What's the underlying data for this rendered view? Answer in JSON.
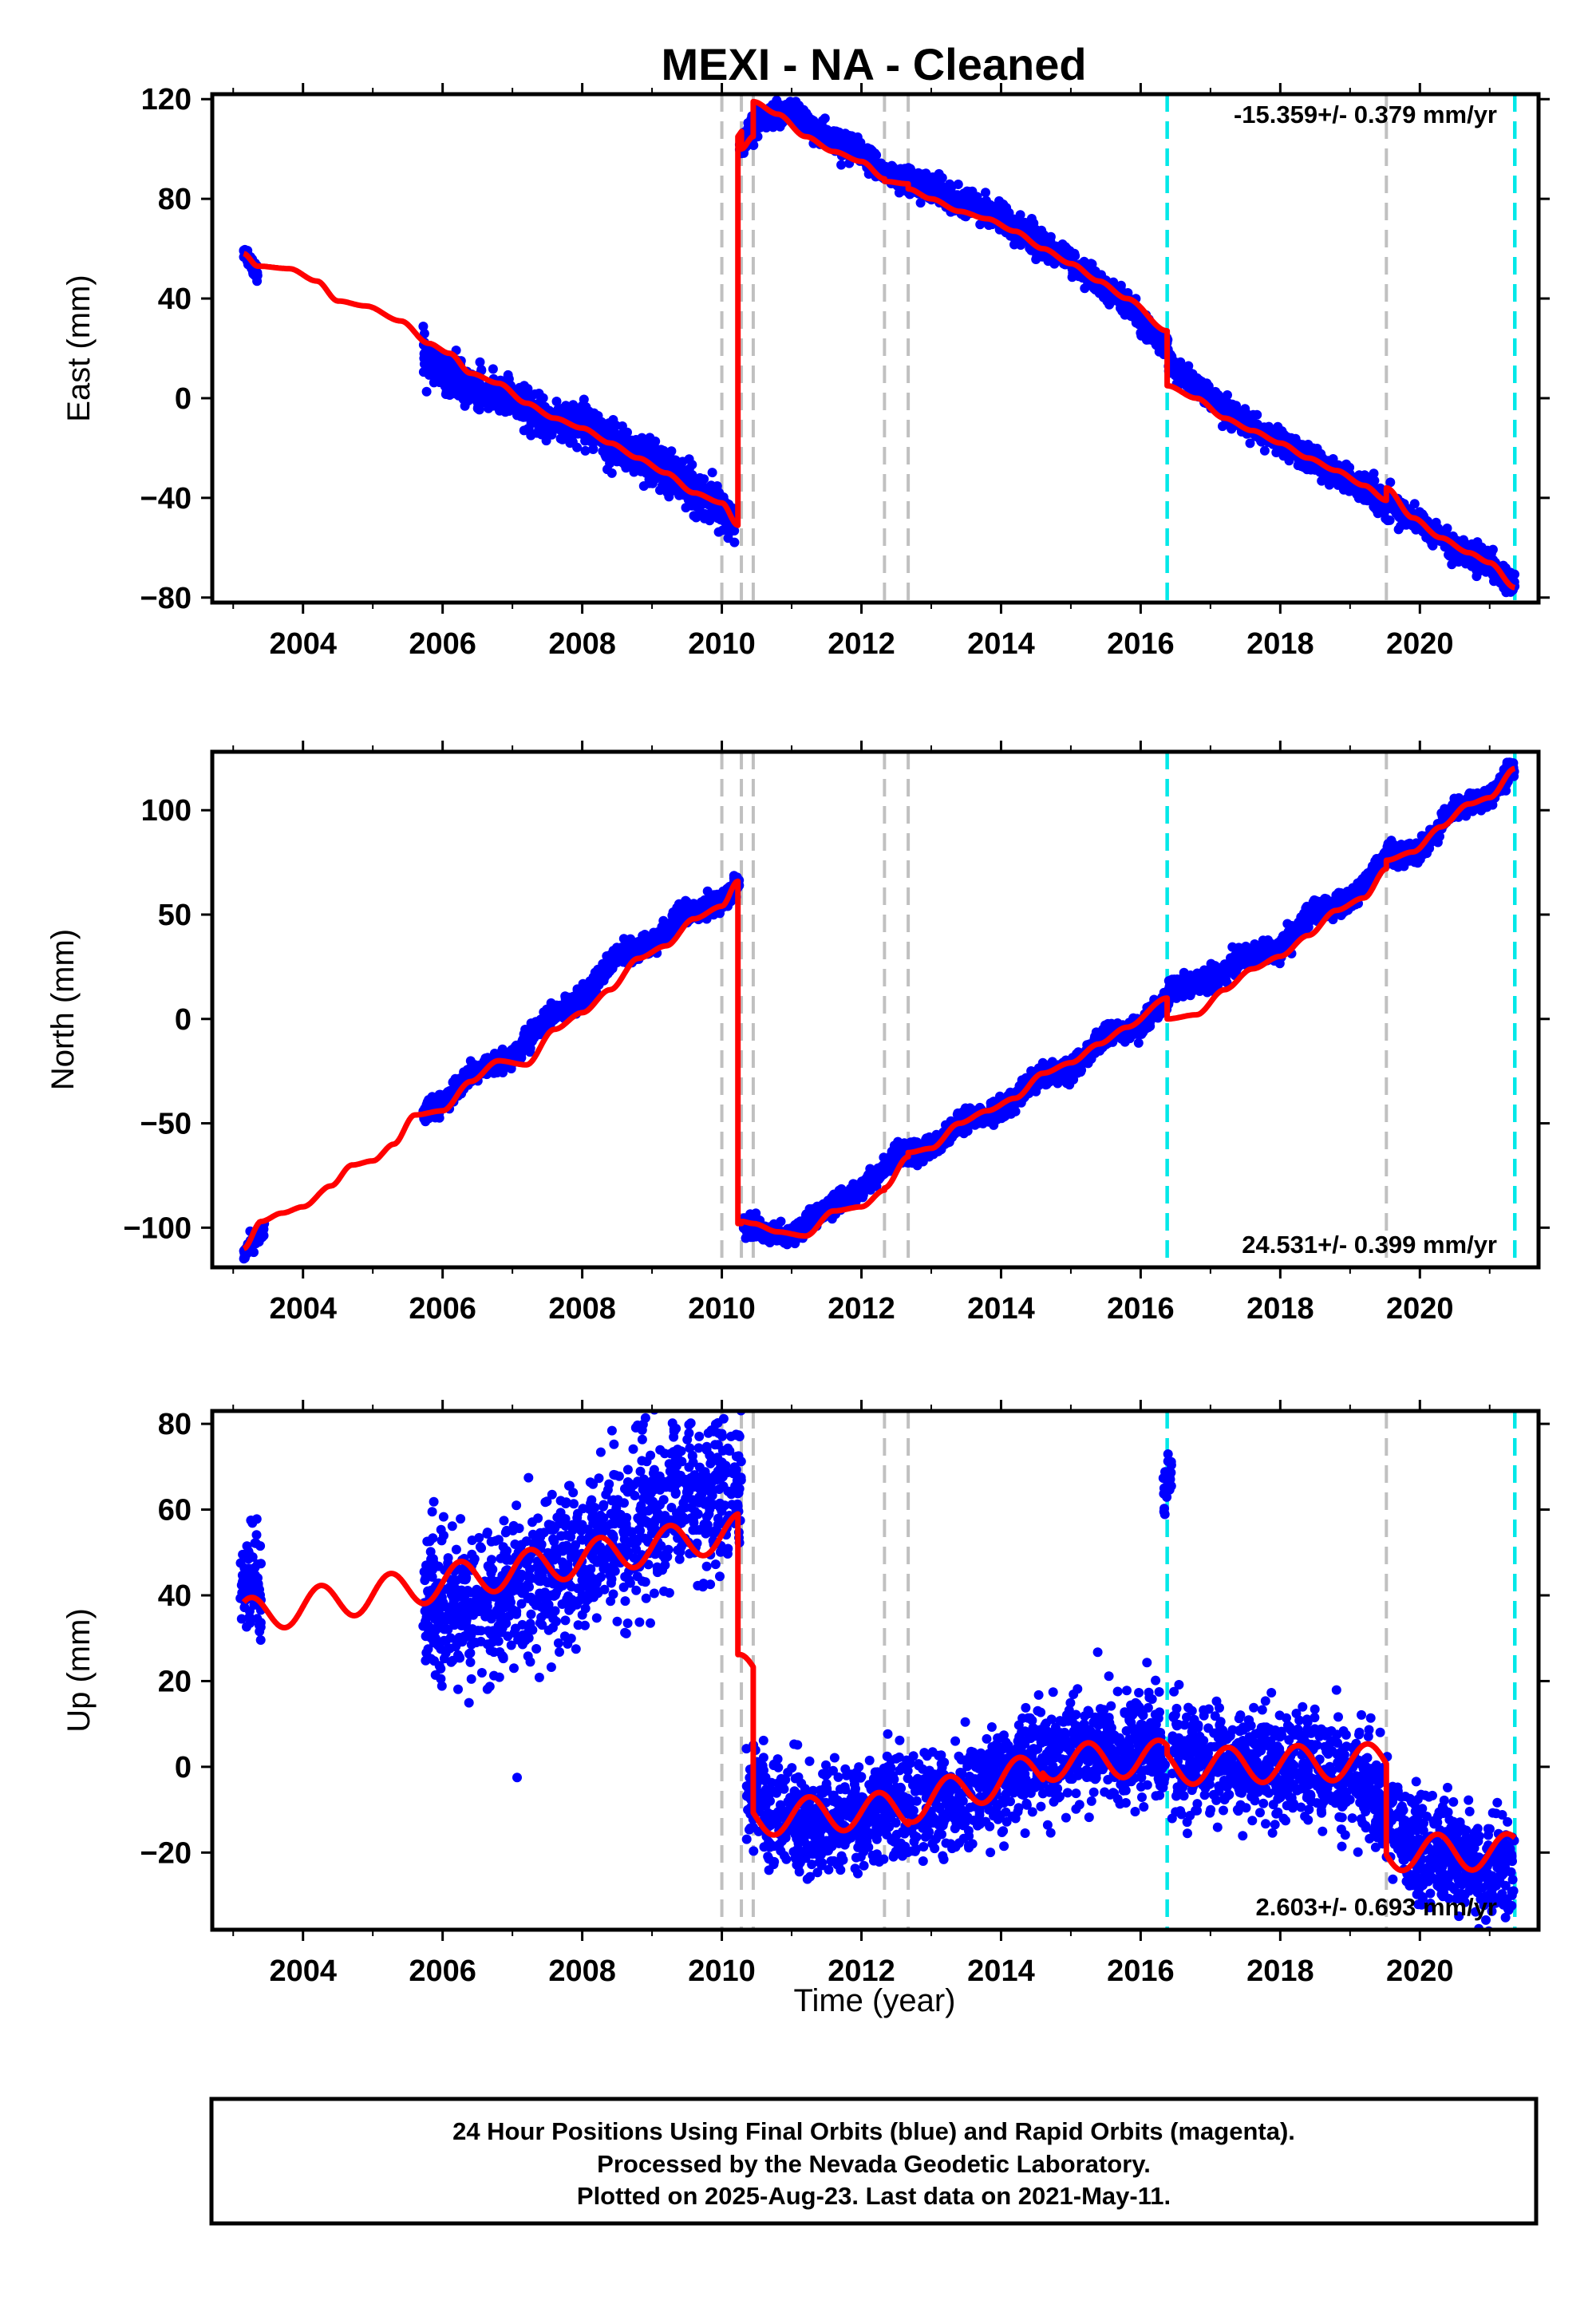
{
  "chart_data": [
    {
      "type": "scatter",
      "title": "MEXI  - NA - Cleaned",
      "ylabel": "East (mm)",
      "xlabel": "",
      "xlim": [
        2002.7,
        2021.7
      ],
      "ylim": [
        -82,
        122
      ],
      "xticks": [
        "2004",
        "2006",
        "2008",
        "2010",
        "2012",
        "2014",
        "2016",
        "2018",
        "2020"
      ],
      "yticks": [
        "−80",
        "−40",
        "0",
        "40",
        "80",
        "120"
      ],
      "rate_text": "-15.359+/- 0.379 mm/yr",
      "rate_position": "top-right",
      "colors": {
        "observations": "#0000ff",
        "model": "#ff0000",
        "gray_event": "#c0c0c0",
        "cyan_event": "#00e8e8"
      },
      "gray_event_lines": [
        2010.0,
        2010.28,
        2010.45,
        2012.33,
        2012.67,
        2019.52
      ],
      "cyan_event_lines": [
        2016.38,
        2021.36
      ],
      "observation_segments": [
        {
          "x": [
            2003.15,
            2003.2,
            2003.3,
            2003.35
          ],
          "y": [
            60,
            57,
            53,
            50
          ],
          "spread": 2
        },
        {
          "x": [
            2005.72,
            2006.0,
            2006.5,
            2007.0,
            2007.5,
            2008.0,
            2008.5,
            2009.0,
            2009.5,
            2009.9,
            2010.2
          ],
          "y": [
            18,
            10,
            2,
            0,
            -10,
            -10,
            -20,
            -25,
            -35,
            -42,
            -50
          ],
          "spread": 4
        },
        {
          "x": [
            2010.25,
            2010.5,
            2011.0,
            2011.5,
            2012.0,
            2012.5,
            2013.0,
            2013.5,
            2014.0,
            2014.5,
            2015.0,
            2015.5,
            2016.0,
            2016.4
          ],
          "y": [
            100,
            112,
            115,
            105,
            98,
            88,
            85,
            78,
            72,
            64,
            55,
            44,
            32,
            18
          ],
          "spread": 2.5
        },
        {
          "x": [
            2016.4,
            2017.0,
            2017.5,
            2018.0,
            2018.5,
            2019.0,
            2019.5,
            2020.0,
            2020.5,
            2021.0,
            2021.36
          ],
          "y": [
            14,
            0,
            -10,
            -18,
            -26,
            -33,
            -42,
            -50,
            -60,
            -66,
            -76
          ],
          "spread": 2.5
        }
      ],
      "model_line": {
        "x": [
          2003.15,
          2003.35,
          2003.8,
          2004.2,
          2004.5,
          2004.9,
          2005.4,
          2005.8,
          2006.1,
          2006.4,
          2006.8,
          2007.2,
          2007.6,
          2008.0,
          2008.4,
          2008.8,
          2009.2,
          2009.6,
          2010.0,
          2010.23,
          2010.23,
          2010.28,
          2010.28,
          2010.45,
          2010.45,
          2010.8,
          2011.2,
          2011.6,
          2012.0,
          2012.33,
          2012.33,
          2012.67,
          2012.67,
          2013.0,
          2013.4,
          2013.8,
          2014.2,
          2014.6,
          2015.0,
          2015.4,
          2015.8,
          2016.38,
          2016.38,
          2016.8,
          2017.2,
          2017.6,
          2018.0,
          2018.4,
          2018.8,
          2019.2,
          2019.52,
          2019.52,
          2019.9,
          2020.3,
          2020.7,
          2021.0,
          2021.36
        ],
        "y": [
          58,
          53,
          52,
          47,
          39,
          37,
          31,
          22,
          18,
          10,
          6,
          -2,
          -8,
          -12,
          -18,
          -24,
          -30,
          -38,
          -42,
          -51,
          105,
          107,
          100,
          105,
          119,
          114,
          105,
          99,
          95,
          88,
          87,
          86,
          84,
          80,
          75,
          72,
          67,
          60,
          54,
          47,
          40,
          27,
          5,
          0,
          -8,
          -13,
          -18,
          -24,
          -29,
          -35,
          -41,
          -36,
          -48,
          -56,
          -62,
          -66,
          -76
        ]
      }
    },
    {
      "type": "scatter",
      "ylabel": "North (mm)",
      "xlabel": "",
      "xlim": [
        2002.7,
        2021.7
      ],
      "ylim": [
        -119,
        128
      ],
      "xticks": [
        "2004",
        "2006",
        "2008",
        "2010",
        "2012",
        "2014",
        "2016",
        "2018",
        "2020"
      ],
      "yticks": [
        "−100",
        "−50",
        "0",
        "50",
        "100"
      ],
      "rate_text": "24.531+/- 0.399 mm/yr",
      "rate_position": "bottom-right",
      "colors": {
        "observations": "#0000ff",
        "model": "#ff0000",
        "gray_event": "#c0c0c0",
        "cyan_event": "#00e8e8"
      },
      "gray_event_lines": [
        2010.0,
        2010.28,
        2010.45,
        2012.33,
        2012.67,
        2019.52
      ],
      "cyan_event_lines": [
        2016.38,
        2021.36
      ],
      "observation_segments": [
        {
          "x": [
            2003.15,
            2003.3,
            2003.45
          ],
          "y": [
            -112,
            -106,
            -102
          ],
          "spread": 2
        },
        {
          "x": [
            2005.72,
            2006.0,
            2006.5,
            2007.0,
            2007.5,
            2008.0,
            2008.5,
            2009.0,
            2009.5,
            2010.0,
            2010.25
          ],
          "y": [
            -46,
            -40,
            -24,
            -18,
            0,
            10,
            30,
            35,
            52,
            56,
            66
          ],
          "spread": 2.5
        },
        {
          "x": [
            2010.3,
            2010.6,
            2011.0,
            2011.5,
            2012.0,
            2012.5,
            2013.0,
            2013.5,
            2014.0,
            2014.5,
            2015.0,
            2015.5,
            2016.0,
            2016.4
          ],
          "y": [
            -98,
            -102,
            -104,
            -90,
            -82,
            -66,
            -62,
            -48,
            -44,
            -28,
            -24,
            -8,
            -4,
            10
          ],
          "spread": 2.5
        },
        {
          "x": [
            2016.4,
            2017.0,
            2017.5,
            2018.0,
            2018.5,
            2019.0,
            2019.5,
            2020.0,
            2020.5,
            2021.0,
            2021.36
          ],
          "y": [
            14,
            18,
            30,
            34,
            52,
            55,
            78,
            80,
            102,
            106,
            122
          ],
          "spread": 2.5
        }
      ],
      "model_line": {
        "x": [
          2003.15,
          2003.4,
          2003.7,
          2004.0,
          2004.4,
          2004.7,
          2005.0,
          2005.3,
          2005.6,
          2006.0,
          2006.4,
          2006.8,
          2007.2,
          2007.6,
          2008.0,
          2008.4,
          2008.8,
          2009.2,
          2009.6,
          2010.0,
          2010.23,
          2010.23,
          2010.28,
          2010.28,
          2010.45,
          2010.45,
          2010.8,
          2011.2,
          2011.6,
          2012.0,
          2012.33,
          2012.33,
          2012.67,
          2012.67,
          2013.0,
          2013.4,
          2013.8,
          2014.2,
          2014.6,
          2015.0,
          2015.4,
          2015.8,
          2016.38,
          2016.38,
          2016.8,
          2017.2,
          2017.6,
          2018.0,
          2018.4,
          2018.8,
          2019.2,
          2019.52,
          2019.52,
          2019.9,
          2020.3,
          2020.7,
          2021.0,
          2021.36
        ],
        "y": [
          -110,
          -97,
          -93,
          -90,
          -80,
          -70,
          -68,
          -60,
          -46,
          -44,
          -30,
          -20,
          -22,
          -5,
          3,
          14,
          29,
          35,
          48,
          54,
          66,
          -98,
          -98,
          -97,
          -98,
          -98,
          -102,
          -104,
          -92,
          -90,
          -82,
          -81,
          -66,
          -64,
          -62,
          -50,
          -44,
          -38,
          -26,
          -21,
          -12,
          -4,
          10,
          0,
          2,
          14,
          24,
          30,
          40,
          52,
          58,
          72,
          76,
          80,
          92,
          103,
          106,
          120
        ]
      }
    },
    {
      "type": "scatter",
      "ylabel": "Up (mm)",
      "xlabel": "Time (year)",
      "xlim": [
        2002.7,
        2021.7
      ],
      "ylim": [
        -38,
        83
      ],
      "xticks": [
        "2004",
        "2006",
        "2008",
        "2010",
        "2012",
        "2014",
        "2016",
        "2018",
        "2020"
      ],
      "yticks": [
        "−20",
        "0",
        "20",
        "40",
        "60",
        "80"
      ],
      "rate_text": "2.603+/- 0.693 mm/yr",
      "rate_position": "bottom-right",
      "colors": {
        "observations": "#0000ff",
        "model": "#ff0000",
        "gray_event": "#c0c0c0",
        "cyan_event": "#00e8e8"
      },
      "gray_event_lines": [
        2010.0,
        2010.28,
        2010.45,
        2012.33,
        2012.67,
        2019.52
      ],
      "cyan_event_lines": [
        2016.38,
        2021.36
      ],
      "observation_segments": [
        {
          "x": [
            2003.1,
            2003.2,
            2003.3,
            2003.4
          ],
          "y": [
            42,
            44,
            46,
            40
          ],
          "spread": 6
        },
        {
          "x": [
            2005.72,
            2006.0,
            2006.5,
            2007.0,
            2007.5,
            2008.0,
            2008.5,
            2009.0,
            2009.5,
            2010.0,
            2010.28
          ],
          "y": [
            38,
            36,
            38,
            40,
            45,
            50,
            55,
            60,
            62,
            64,
            66
          ],
          "spread": 9
        },
        {
          "x": [
            2010.35,
            2010.6,
            2011.0,
            2011.5,
            2012.0,
            2012.5,
            2013.0,
            2013.5,
            2014.0,
            2014.5,
            2015.0,
            2015.5,
            2016.0,
            2016.35
          ],
          "y": [
            -5,
            -9,
            -12,
            -14,
            -11,
            -9,
            -8,
            -6,
            -3,
            2,
            3,
            4,
            5,
            3
          ],
          "spread": 6
        },
        {
          "x": [
            2016.32,
            2016.38,
            2016.44
          ],
          "y": [
            62,
            66,
            70
          ],
          "spread": 3
        },
        {
          "x": [
            2016.45,
            2017.0,
            2017.5,
            2018.0,
            2018.5,
            2019.0,
            2019.5,
            2020.0,
            2020.5,
            2021.0,
            2021.36
          ],
          "y": [
            3,
            2,
            1,
            1,
            0,
            -2,
            -10,
            -20,
            -22,
            -25,
            -24
          ],
          "spread": 6
        }
      ],
      "model_sine": {
        "amplitude": 4.2,
        "period": 1.0,
        "segments": [
          {
            "x0": 2003.15,
            "x1": 2010.23,
            "y0": 35,
            "slope": 2.8
          },
          {
            "x0": 2010.23,
            "x1": 2010.45,
            "y0": 22,
            "slope": 0
          },
          {
            "x0": 2010.45,
            "x1": 2012.67,
            "y0": -12,
            "slope": 1.0
          },
          {
            "x0": 2012.67,
            "x1": 2014.6,
            "y0": -9,
            "slope": 4.4
          },
          {
            "x0": 2014.6,
            "x1": 2016.38,
            "y0": 1,
            "slope": 0.6
          },
          {
            "x0": 2016.38,
            "x1": 2019.52,
            "y0": 0,
            "slope": 0.4
          },
          {
            "x0": 2019.52,
            "x1": 2021.36,
            "y0": -20,
            "slope": 0.1
          }
        ]
      }
    }
  ],
  "footer": {
    "line1": "24 Hour Positions Using Final Orbits (blue) and Rapid Orbits (magenta).",
    "line2": "Processed by the Nevada Geodetic Laboratory.",
    "line3": "Plotted on 2025-Aug-23. Last data on 2021-May-11."
  }
}
